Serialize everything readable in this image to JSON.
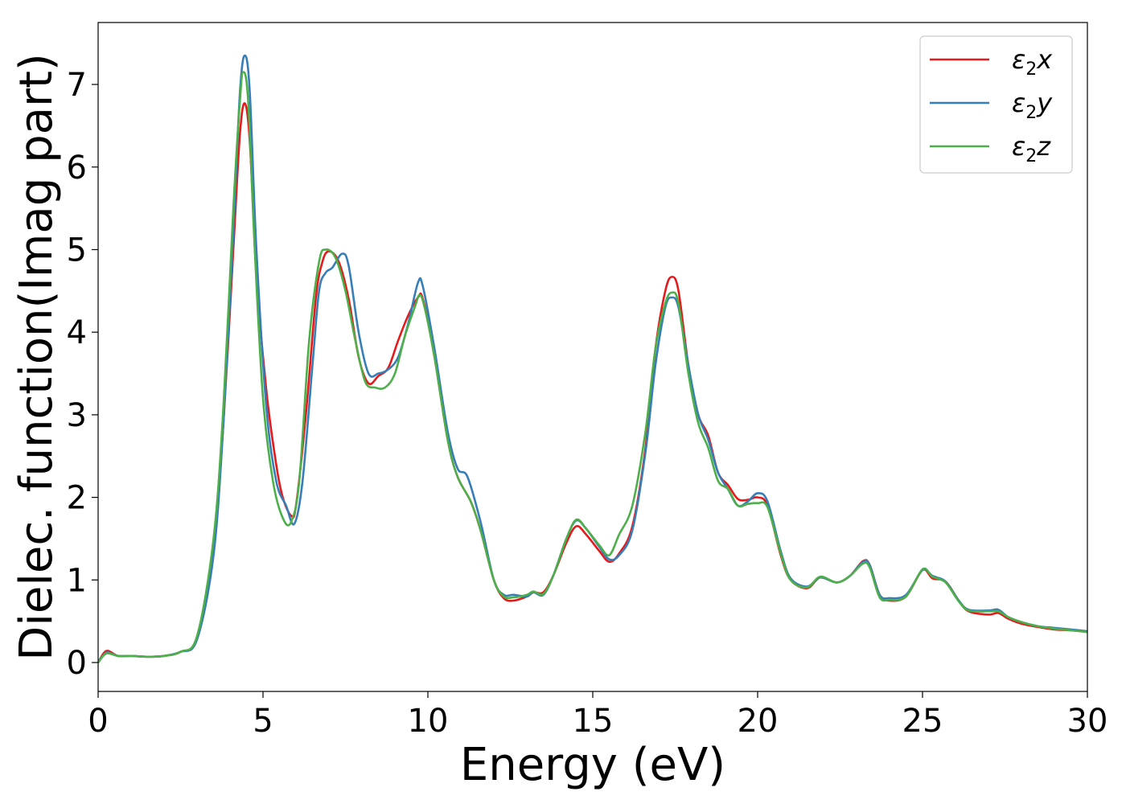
{
  "chart_data": {
    "type": "line",
    "title": "",
    "xlabel": "Energy (eV)",
    "ylabel": "Dielec. function(Imag part)",
    "xlim": [
      0,
      30
    ],
    "ylim": [
      -0.35,
      7.75
    ],
    "xticks": [
      0,
      5,
      10,
      15,
      20,
      25,
      30
    ],
    "yticks": [
      0,
      1,
      2,
      3,
      4,
      5,
      6,
      7
    ],
    "grid": false,
    "legend_position": "top-right",
    "series": [
      {
        "name": "ε₂x",
        "legend_base": "ε",
        "legend_sub": "2",
        "legend_var": "x",
        "color": "#e41a1c",
        "points": [
          [
            0,
            0
          ],
          [
            0.25,
            0.14
          ],
          [
            0.6,
            0.08
          ],
          [
            1.0,
            0.08
          ],
          [
            1.5,
            0.07
          ],
          [
            2.0,
            0.08
          ],
          [
            2.5,
            0.13
          ],
          [
            3.0,
            0.3
          ],
          [
            3.5,
            1.4
          ],
          [
            3.8,
            2.9
          ],
          [
            4.1,
            5.0
          ],
          [
            4.3,
            6.4
          ],
          [
            4.45,
            6.77
          ],
          [
            4.6,
            6.3
          ],
          [
            4.8,
            4.7
          ],
          [
            5.1,
            3.3
          ],
          [
            5.4,
            2.4
          ],
          [
            5.6,
            2.0
          ],
          [
            5.85,
            1.78
          ],
          [
            6.0,
            1.9
          ],
          [
            6.3,
            3.0
          ],
          [
            6.6,
            4.4
          ],
          [
            6.8,
            4.85
          ],
          [
            7.0,
            4.98
          ],
          [
            7.3,
            4.85
          ],
          [
            7.6,
            4.4
          ],
          [
            7.9,
            3.7
          ],
          [
            8.2,
            3.38
          ],
          [
            8.5,
            3.47
          ],
          [
            8.8,
            3.57
          ],
          [
            9.1,
            3.9
          ],
          [
            9.4,
            4.2
          ],
          [
            9.7,
            4.42
          ],
          [
            9.85,
            4.4
          ],
          [
            10.2,
            3.7
          ],
          [
            10.6,
            2.7
          ],
          [
            10.9,
            2.25
          ],
          [
            11.3,
            1.95
          ],
          [
            11.6,
            1.6
          ],
          [
            12.0,
            1.0
          ],
          [
            12.3,
            0.78
          ],
          [
            12.6,
            0.75
          ],
          [
            13.0,
            0.8
          ],
          [
            13.2,
            0.85
          ],
          [
            13.5,
            0.85
          ],
          [
            13.8,
            1.05
          ],
          [
            14.2,
            1.45
          ],
          [
            14.5,
            1.65
          ],
          [
            14.8,
            1.55
          ],
          [
            15.2,
            1.35
          ],
          [
            15.5,
            1.22
          ],
          [
            15.8,
            1.32
          ],
          [
            16.2,
            1.65
          ],
          [
            16.6,
            2.6
          ],
          [
            16.9,
            3.8
          ],
          [
            17.2,
            4.5
          ],
          [
            17.4,
            4.67
          ],
          [
            17.6,
            4.5
          ],
          [
            17.9,
            3.6
          ],
          [
            18.2,
            3.0
          ],
          [
            18.5,
            2.75
          ],
          [
            18.8,
            2.3
          ],
          [
            19.1,
            2.15
          ],
          [
            19.4,
            1.98
          ],
          [
            19.7,
            1.97
          ],
          [
            20.0,
            2.0
          ],
          [
            20.3,
            1.9
          ],
          [
            20.7,
            1.3
          ],
          [
            21.0,
            1.0
          ],
          [
            21.5,
            0.9
          ],
          [
            21.9,
            1.03
          ],
          [
            22.4,
            0.97
          ],
          [
            22.8,
            1.05
          ],
          [
            23.2,
            1.23
          ],
          [
            23.4,
            1.18
          ],
          [
            23.7,
            0.82
          ],
          [
            24.0,
            0.75
          ],
          [
            24.5,
            0.8
          ],
          [
            25.0,
            1.12
          ],
          [
            25.3,
            1.02
          ],
          [
            25.7,
            0.98
          ],
          [
            26.1,
            0.75
          ],
          [
            26.4,
            0.62
          ],
          [
            27.0,
            0.58
          ],
          [
            27.3,
            0.6
          ],
          [
            27.6,
            0.53
          ],
          [
            28.0,
            0.47
          ],
          [
            28.5,
            0.43
          ],
          [
            29.0,
            0.4
          ],
          [
            29.5,
            0.39
          ],
          [
            30.0,
            0.37
          ]
        ]
      },
      {
        "name": "ε₂y",
        "legend_base": "ε",
        "legend_sub": "2",
        "legend_var": "y",
        "color": "#377eb8",
        "points": [
          [
            0,
            0
          ],
          [
            0.25,
            0.12
          ],
          [
            0.6,
            0.08
          ],
          [
            1.0,
            0.08
          ],
          [
            1.5,
            0.07
          ],
          [
            2.0,
            0.08
          ],
          [
            2.5,
            0.13
          ],
          [
            3.0,
            0.28
          ],
          [
            3.5,
            1.3
          ],
          [
            3.8,
            2.9
          ],
          [
            4.1,
            5.2
          ],
          [
            4.3,
            6.9
          ],
          [
            4.45,
            7.35
          ],
          [
            4.6,
            6.9
          ],
          [
            4.8,
            5.0
          ],
          [
            5.1,
            3.1
          ],
          [
            5.4,
            2.2
          ],
          [
            5.7,
            1.9
          ],
          [
            5.95,
            1.68
          ],
          [
            6.2,
            2.2
          ],
          [
            6.5,
            3.6
          ],
          [
            6.7,
            4.5
          ],
          [
            6.9,
            4.72
          ],
          [
            7.1,
            4.78
          ],
          [
            7.4,
            4.95
          ],
          [
            7.6,
            4.8
          ],
          [
            7.9,
            4.0
          ],
          [
            8.2,
            3.5
          ],
          [
            8.5,
            3.5
          ],
          [
            8.8,
            3.55
          ],
          [
            9.1,
            3.7
          ],
          [
            9.4,
            4.1
          ],
          [
            9.7,
            4.6
          ],
          [
            9.85,
            4.55
          ],
          [
            10.2,
            3.8
          ],
          [
            10.6,
            2.8
          ],
          [
            10.9,
            2.35
          ],
          [
            11.2,
            2.25
          ],
          [
            11.6,
            1.7
          ],
          [
            12.0,
            1.0
          ],
          [
            12.3,
            0.82
          ],
          [
            12.6,
            0.82
          ],
          [
            13.0,
            0.8
          ],
          [
            13.2,
            0.85
          ],
          [
            13.5,
            0.82
          ],
          [
            13.8,
            1.05
          ],
          [
            14.2,
            1.5
          ],
          [
            14.5,
            1.72
          ],
          [
            14.8,
            1.62
          ],
          [
            15.2,
            1.4
          ],
          [
            15.5,
            1.25
          ],
          [
            15.8,
            1.3
          ],
          [
            16.2,
            1.6
          ],
          [
            16.6,
            2.55
          ],
          [
            16.9,
            3.6
          ],
          [
            17.2,
            4.3
          ],
          [
            17.4,
            4.42
          ],
          [
            17.6,
            4.3
          ],
          [
            17.9,
            3.6
          ],
          [
            18.2,
            3.0
          ],
          [
            18.5,
            2.7
          ],
          [
            18.8,
            2.3
          ],
          [
            19.1,
            2.1
          ],
          [
            19.4,
            1.9
          ],
          [
            19.7,
            1.95
          ],
          [
            20.0,
            2.05
          ],
          [
            20.3,
            1.95
          ],
          [
            20.7,
            1.35
          ],
          [
            21.0,
            1.02
          ],
          [
            21.5,
            0.92
          ],
          [
            21.9,
            1.03
          ],
          [
            22.4,
            0.97
          ],
          [
            22.8,
            1.05
          ],
          [
            23.2,
            1.22
          ],
          [
            23.4,
            1.18
          ],
          [
            23.7,
            0.82
          ],
          [
            24.0,
            0.78
          ],
          [
            24.5,
            0.82
          ],
          [
            25.0,
            1.12
          ],
          [
            25.3,
            1.05
          ],
          [
            25.7,
            0.98
          ],
          [
            26.1,
            0.75
          ],
          [
            26.4,
            0.64
          ],
          [
            27.0,
            0.63
          ],
          [
            27.3,
            0.64
          ],
          [
            27.6,
            0.55
          ],
          [
            28.0,
            0.49
          ],
          [
            28.5,
            0.44
          ],
          [
            29.0,
            0.42
          ],
          [
            29.5,
            0.4
          ],
          [
            30.0,
            0.38
          ]
        ]
      },
      {
        "name": "ε₂z",
        "legend_base": "ε",
        "legend_sub": "2",
        "legend_var": "z",
        "color": "#4daf4a",
        "points": [
          [
            0,
            0
          ],
          [
            0.25,
            0.11
          ],
          [
            0.6,
            0.08
          ],
          [
            1.0,
            0.08
          ],
          [
            1.5,
            0.07
          ],
          [
            2.0,
            0.08
          ],
          [
            2.5,
            0.13
          ],
          [
            3.0,
            0.32
          ],
          [
            3.5,
            1.5
          ],
          [
            3.8,
            3.1
          ],
          [
            4.1,
            5.5
          ],
          [
            4.3,
            6.8
          ],
          [
            4.4,
            7.15
          ],
          [
            4.55,
            6.8
          ],
          [
            4.75,
            5.0
          ],
          [
            5.0,
            3.2
          ],
          [
            5.3,
            2.2
          ],
          [
            5.6,
            1.75
          ],
          [
            5.85,
            1.7
          ],
          [
            6.1,
            2.2
          ],
          [
            6.4,
            3.9
          ],
          [
            6.7,
            4.85
          ],
          [
            6.9,
            5.0
          ],
          [
            7.2,
            4.9
          ],
          [
            7.5,
            4.5
          ],
          [
            7.8,
            3.9
          ],
          [
            8.1,
            3.4
          ],
          [
            8.4,
            3.33
          ],
          [
            8.7,
            3.33
          ],
          [
            9.0,
            3.5
          ],
          [
            9.3,
            3.95
          ],
          [
            9.6,
            4.3
          ],
          [
            9.75,
            4.45
          ],
          [
            9.9,
            4.3
          ],
          [
            10.2,
            3.7
          ],
          [
            10.6,
            2.7
          ],
          [
            10.9,
            2.25
          ],
          [
            11.3,
            1.95
          ],
          [
            11.6,
            1.6
          ],
          [
            12.0,
            1.0
          ],
          [
            12.3,
            0.8
          ],
          [
            12.6,
            0.79
          ],
          [
            13.0,
            0.82
          ],
          [
            13.2,
            0.86
          ],
          [
            13.5,
            0.83
          ],
          [
            13.8,
            1.05
          ],
          [
            14.2,
            1.5
          ],
          [
            14.5,
            1.73
          ],
          [
            14.8,
            1.62
          ],
          [
            15.2,
            1.42
          ],
          [
            15.5,
            1.3
          ],
          [
            15.8,
            1.55
          ],
          [
            16.2,
            1.9
          ],
          [
            16.6,
            2.8
          ],
          [
            16.9,
            3.8
          ],
          [
            17.2,
            4.35
          ],
          [
            17.4,
            4.48
          ],
          [
            17.6,
            4.35
          ],
          [
            17.9,
            3.5
          ],
          [
            18.2,
            2.9
          ],
          [
            18.5,
            2.6
          ],
          [
            18.8,
            2.2
          ],
          [
            19.1,
            2.1
          ],
          [
            19.4,
            1.9
          ],
          [
            19.7,
            1.92
          ],
          [
            20.0,
            1.93
          ],
          [
            20.3,
            1.88
          ],
          [
            20.7,
            1.32
          ],
          [
            21.0,
            1.0
          ],
          [
            21.5,
            0.91
          ],
          [
            21.9,
            1.04
          ],
          [
            22.4,
            0.97
          ],
          [
            22.8,
            1.05
          ],
          [
            23.2,
            1.2
          ],
          [
            23.4,
            1.15
          ],
          [
            23.7,
            0.79
          ],
          [
            24.0,
            0.76
          ],
          [
            24.5,
            0.8
          ],
          [
            25.0,
            1.13
          ],
          [
            25.3,
            1.04
          ],
          [
            25.7,
            0.97
          ],
          [
            26.1,
            0.74
          ],
          [
            26.4,
            0.63
          ],
          [
            27.0,
            0.62
          ],
          [
            27.3,
            0.62
          ],
          [
            27.6,
            0.55
          ],
          [
            28.0,
            0.49
          ],
          [
            28.5,
            0.44
          ],
          [
            29.0,
            0.41
          ],
          [
            29.5,
            0.39
          ],
          [
            30.0,
            0.37
          ]
        ]
      }
    ]
  }
}
